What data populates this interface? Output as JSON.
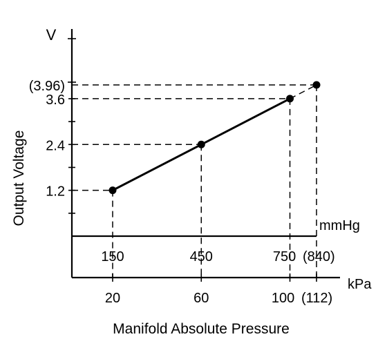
{
  "chart_data": {
    "type": "line",
    "title": "",
    "xlabel": "Manifold Absolute Pressure",
    "ylabel": "Output Voltage",
    "y_unit": "V",
    "ylim": [
      0,
      3.96
    ],
    "grid": false,
    "x_axes": [
      {
        "unit": "mmHg",
        "ticks": [
          150,
          450,
          750,
          840
        ],
        "tick_labels": [
          "150",
          "450",
          "750",
          "(840)"
        ]
      },
      {
        "unit": "kPa",
        "ticks": [
          20,
          60,
          100,
          112
        ],
        "tick_labels": [
          "20",
          "60",
          "100",
          "(112)"
        ]
      }
    ],
    "y_ticks": [
      1.2,
      2.4,
      3.6,
      3.96
    ],
    "y_tick_labels": [
      "1.2",
      "2.4",
      "3.6",
      "(3.96)"
    ],
    "series": [
      {
        "x_mmHg": [
          150,
          450,
          750,
          840
        ],
        "x_kPa": [
          20,
          60,
          100,
          112
        ],
        "values": [
          1.2,
          2.4,
          3.6,
          3.96
        ]
      }
    ]
  }
}
